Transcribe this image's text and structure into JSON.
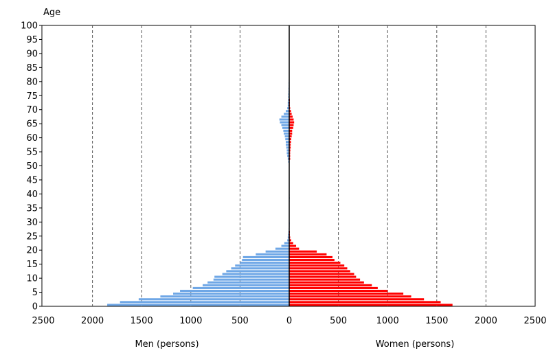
{
  "chart_data": {
    "type": "bar",
    "orientation": "horizontal",
    "layout": "population-pyramid",
    "y_axis_title": "Age",
    "xlabel_left": "Men (persons)",
    "xlabel_right": "Women (persons)",
    "ylim": [
      0,
      100
    ],
    "xlim_left": [
      2500,
      0
    ],
    "xlim_right": [
      0,
      2500
    ],
    "y_ticks": [
      0,
      5,
      10,
      15,
      20,
      25,
      30,
      35,
      40,
      45,
      50,
      55,
      60,
      65,
      70,
      75,
      80,
      85,
      90,
      95,
      100
    ],
    "x_ticks_left": [
      2500,
      2000,
      1500,
      1000,
      500,
      0
    ],
    "x_ticks_right": [
      0,
      500,
      1000,
      1500,
      2000,
      2500
    ],
    "grid": "vertical dashed at 500 intervals",
    "series": [
      {
        "name": "Men (persons)",
        "color": "#6fa7e6",
        "ages": [
          0,
          1,
          2,
          3,
          4,
          5,
          6,
          7,
          8,
          9,
          10,
          11,
          12,
          13,
          14,
          15,
          16,
          17,
          18,
          19,
          20,
          21,
          22,
          23,
          24,
          25,
          26,
          27,
          28,
          29,
          30,
          31,
          32,
          33,
          34,
          35,
          36,
          37,
          38,
          39,
          40,
          41,
          42,
          43,
          44,
          45,
          46,
          47,
          48,
          49,
          50,
          51,
          52,
          53,
          54,
          55,
          56,
          57,
          58,
          59,
          60,
          61,
          62,
          63,
          64,
          65,
          66,
          67,
          68,
          69,
          70,
          71,
          72,
          73,
          74,
          75,
          76,
          77,
          78,
          79,
          80
        ],
        "values": [
          1850,
          1720,
          1530,
          1310,
          1180,
          1110,
          980,
          880,
          830,
          770,
          760,
          680,
          640,
          590,
          550,
          500,
          480,
          470,
          340,
          240,
          140,
          80,
          50,
          20,
          15,
          12,
          8,
          5,
          3,
          2,
          0,
          0,
          0,
          0,
          0,
          0,
          0,
          3,
          2,
          3,
          0,
          0,
          0,
          0,
          0,
          0,
          0,
          0,
          0,
          0,
          0,
          10,
          15,
          20,
          25,
          25,
          30,
          35,
          35,
          40,
          45,
          55,
          60,
          70,
          80,
          95,
          100,
          80,
          55,
          35,
          20,
          15,
          15,
          12,
          10,
          10,
          8,
          8,
          6,
          6,
          4
        ]
      },
      {
        "name": "Women (persons)",
        "color": "#ff0000",
        "ages": [
          0,
          1,
          2,
          3,
          4,
          5,
          6,
          7,
          8,
          9,
          10,
          11,
          12,
          13,
          14,
          15,
          16,
          17,
          18,
          19,
          20,
          21,
          22,
          23,
          24,
          25,
          26,
          27,
          28,
          29,
          30,
          31,
          32,
          33,
          34,
          35,
          36,
          37,
          38,
          39,
          40,
          41,
          42,
          43,
          44,
          45,
          46,
          47,
          48,
          49,
          50,
          51,
          52,
          53,
          54,
          55,
          56,
          57,
          58,
          59,
          60,
          61,
          62,
          63,
          64,
          65,
          66,
          67,
          68,
          69,
          70,
          71,
          72,
          73,
          74,
          75,
          76,
          77,
          78,
          79,
          80
        ],
        "values": [
          1660,
          1540,
          1370,
          1240,
          1160,
          1000,
          900,
          840,
          760,
          720,
          680,
          660,
          620,
          590,
          560,
          520,
          460,
          440,
          380,
          280,
          100,
          70,
          40,
          20,
          10,
          5,
          3,
          0,
          0,
          0,
          0,
          0,
          0,
          0,
          0,
          0,
          0,
          0,
          0,
          0,
          0,
          0,
          0,
          0,
          0,
          0,
          0,
          0,
          0,
          0,
          0,
          0,
          10,
          10,
          10,
          12,
          15,
          15,
          18,
          20,
          25,
          30,
          30,
          40,
          45,
          50,
          45,
          35,
          25,
          18,
          10,
          5,
          3,
          2,
          0,
          0,
          0,
          0,
          0,
          0,
          0
        ]
      }
    ]
  }
}
